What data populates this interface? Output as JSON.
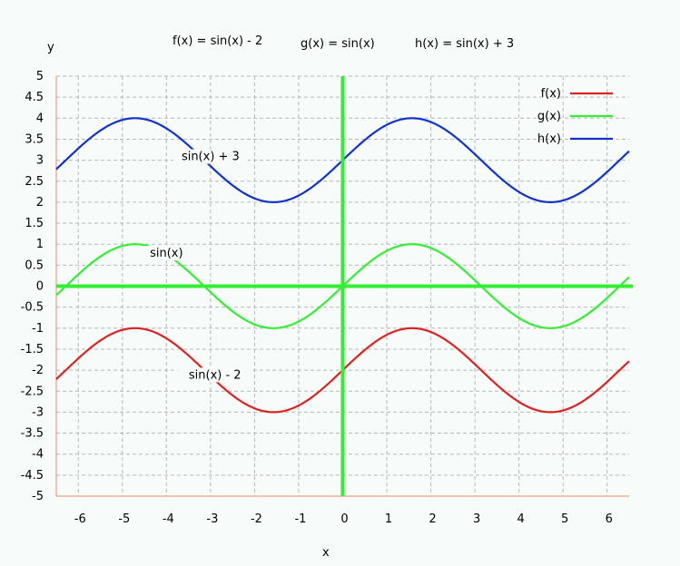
{
  "chart_data": {
    "type": "line",
    "title_formulas": [
      "f(x) = sin(x) - 2",
      "g(x) = sin(x)",
      "h(x) = sin(x) + 3"
    ],
    "xlabel": "x",
    "ylabel": "y",
    "xlim": [
      -6.5,
      6.5
    ],
    "ylim": [
      -5,
      5
    ],
    "x_ticks": [
      -6,
      -5,
      -4,
      -3,
      -2,
      -1,
      0,
      1,
      2,
      3,
      4,
      5,
      6
    ],
    "y_ticks": [
      -5,
      -4.5,
      -4,
      -3.5,
      -3,
      -2.5,
      -2,
      -1.5,
      -1,
      -0.5,
      0,
      0.5,
      1,
      1.5,
      2,
      2.5,
      3,
      3.5,
      4,
      4.5,
      5
    ],
    "grid": true,
    "legend_position": "top-right",
    "series": [
      {
        "name": "f(x)",
        "expression": "sin(x) - 2",
        "offset": -2,
        "color": "#dd2222",
        "x": [
          -6.5,
          -5.5,
          -4.71,
          -4,
          -3,
          -2,
          -1.57,
          -1,
          0,
          1,
          1.57,
          2,
          3,
          4,
          4.71,
          5,
          6,
          6.5
        ],
        "y": [
          -2.22,
          -1.29,
          -1,
          -1.24,
          -2.14,
          -2.91,
          -3,
          -2.84,
          -2,
          -1.16,
          -1,
          -1.09,
          -1.86,
          -2.76,
          -3,
          -2.96,
          -2.28,
          -1.78
        ]
      },
      {
        "name": "g(x)",
        "expression": "sin(x)",
        "offset": 0,
        "color": "#33ee33",
        "x": [
          -6.5,
          -5.5,
          -4.71,
          -4,
          -3,
          -2,
          -1.57,
          -1,
          0,
          1,
          1.57,
          2,
          3,
          4,
          4.71,
          5,
          6,
          6.5
        ],
        "y": [
          -0.22,
          0.71,
          1,
          0.76,
          -0.14,
          -0.91,
          -1,
          -0.84,
          0,
          0.84,
          1,
          0.91,
          0.14,
          -0.76,
          -1,
          -0.96,
          -0.28,
          0.22
        ]
      },
      {
        "name": "h(x)",
        "expression": "sin(x) + 3",
        "offset": 3,
        "color": "#1133cc",
        "x": [
          -6.5,
          -5.5,
          -4.71,
          -4,
          -3,
          -2,
          -1.57,
          -1,
          0,
          1,
          1.57,
          2,
          3,
          4,
          4.71,
          5,
          6,
          6.5
        ],
        "y": [
          2.78,
          3.71,
          4,
          3.76,
          2.86,
          2.09,
          2,
          2.16,
          3,
          3.84,
          4,
          3.91,
          3.14,
          2.24,
          2,
          2.04,
          2.72,
          3.22
        ]
      }
    ],
    "annotations": [
      {
        "text": "sin(x) + 3",
        "x": -3.0,
        "y": 3.0
      },
      {
        "text": "sin(x)",
        "x": -4.0,
        "y": 0.7
      },
      {
        "text": "sin(x) - 2",
        "x": -2.9,
        "y": -2.2
      }
    ],
    "axis_line_color": "#33ee33",
    "grid_color": "#b8b8b8",
    "frame_color": "#ee8866"
  }
}
